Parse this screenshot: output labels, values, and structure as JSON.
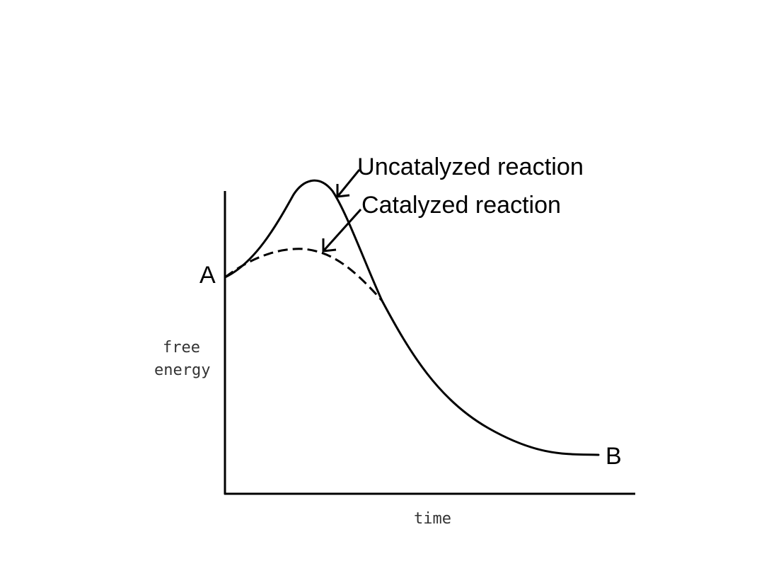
{
  "diagram": {
    "point_a": "A",
    "point_b": "B",
    "y_label_line1": "free",
    "y_label_line2": "energy",
    "x_label": "time",
    "uncatalyzed_label": "Uncatalyzed reaction",
    "catalyzed_label": "Catalyzed reaction",
    "line_color": "#000000"
  }
}
